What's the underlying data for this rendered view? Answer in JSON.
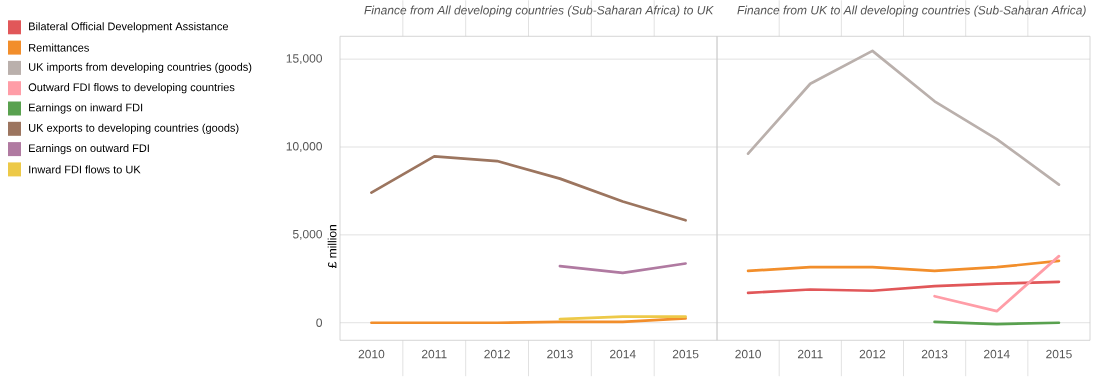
{
  "chart_data": [
    {
      "type": "line",
      "title": "Finance from All developing countries (Sub-Saharan Africa) to UK",
      "ylabel": "£ million",
      "categories": [
        "2010",
        "2011",
        "2012",
        "2013",
        "2014",
        "2015"
      ],
      "series": [
        {
          "color": "#f28e2b",
          "values": [
            0,
            0,
            0,
            50,
            50,
            250
          ]
        },
        {
          "name": "UK exports to developing countries (goods)",
          "color": "#9c755f",
          "values": [
            7400,
            9470,
            9200,
            8200,
            6900,
            5830
          ]
        },
        {
          "name": "Earnings on outward FDI",
          "color": "#b07aa1",
          "values": [
            null,
            null,
            null,
            3220,
            2840,
            3370
          ]
        },
        {
          "name": "Inward FDI flows to UK",
          "color": "#edc948",
          "values": [
            null,
            null,
            null,
            200,
            350,
            350
          ]
        }
      ],
      "ylim": [
        -1000,
        16300
      ],
      "yticks": [
        0,
        {
          "value": 5000,
          "label": "5,000"
        },
        {
          "value": 10000,
          "label": "10,000"
        },
        {
          "value": 15000,
          "label": "15,000"
        }
      ],
      "grid": "y",
      "legend": "left"
    },
    {
      "type": "line",
      "title": "Finance from UK to All developing countries (Sub-Saharan Africa)",
      "categories": [
        "2010",
        "2011",
        "2012",
        "2013",
        "2014",
        "2015"
      ],
      "series": [
        {
          "name": "Bilateral Official Development Assistance",
          "color": "#e15759",
          "values": [
            1700,
            1890,
            1820,
            2080,
            2220,
            2330
          ]
        },
        {
          "name": "Remittances",
          "color": "#f28e2b",
          "values": [
            2950,
            3160,
            3160,
            2950,
            3160,
            3520
          ]
        },
        {
          "name": "UK imports from developing countries (goods)",
          "color": "#bab0ac",
          "values": [
            9620,
            13600,
            15470,
            12600,
            10450,
            7860
          ]
        },
        {
          "name": "Outward FDI flows to developing countries",
          "color": "#ff9da7",
          "values": [
            null,
            null,
            null,
            1510,
            660,
            3790
          ]
        },
        {
          "name": "Earnings on inward FDI",
          "color": "#59a14f",
          "values": [
            null,
            null,
            null,
            50,
            -80,
            0
          ]
        }
      ],
      "ylim": [
        -1000,
        16300
      ],
      "yticks": [
        {
          "value": 0,
          "label": null
        },
        {
          "value": 5000,
          "label": null
        },
        {
          "value": 10000,
          "label": null
        },
        {
          "value": 15000,
          "label": null
        }
      ],
      "grid": "y",
      "tick_labels": "x",
      "legend": "left"
    }
  ]
}
